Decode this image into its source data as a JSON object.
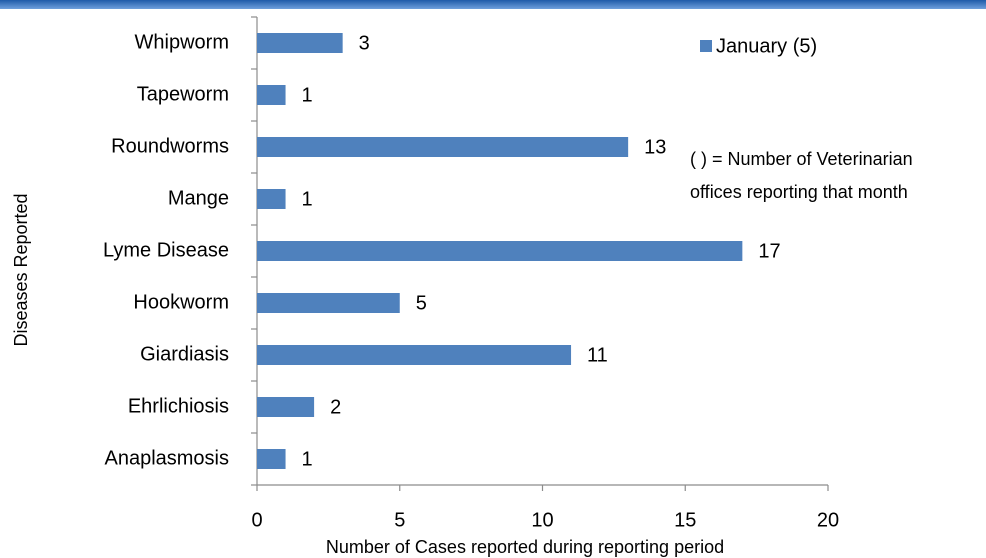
{
  "chart_data": {
    "type": "bar",
    "orientation": "horizontal",
    "categories": [
      "Whipworm",
      "Tapeworm",
      "Roundworms",
      "Mange",
      "Lyme Disease",
      "Hookworm",
      "Giardiasis",
      "Ehrlichiosis",
      "Anaplasmosis"
    ],
    "series": [
      {
        "name": "January (5)",
        "color": "#4f81bd",
        "values": [
          3,
          1,
          13,
          1,
          17,
          5,
          11,
          2,
          1
        ]
      }
    ],
    "xlim": [
      0,
      20
    ],
    "xticks": [
      0,
      5,
      10,
      15,
      20
    ],
    "xlabel": "Number of Cases reported during reporting period",
    "ylabel": "Diseases Reported",
    "annotation": [
      "( ) = Number of Veterinarian",
      "offices reporting that month"
    ],
    "legend": "top-right",
    "grid": false
  }
}
